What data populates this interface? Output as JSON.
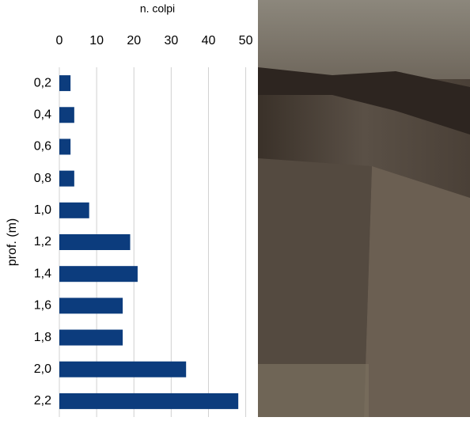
{
  "chart_data": {
    "type": "barh",
    "x_label": "n. colpi",
    "y_label": "prof. (m)",
    "categories": [
      "0,2",
      "0,4",
      "0,6",
      "0,8",
      "1,0",
      "1,2",
      "1,4",
      "1,6",
      "1,8",
      "2,0",
      "2,2"
    ],
    "values": [
      3,
      4,
      3,
      4,
      8,
      19,
      21,
      17,
      17,
      34,
      48
    ],
    "color": "#0c3c7d",
    "xlim": [
      0,
      52
    ],
    "xticks": [
      0,
      10,
      20,
      30,
      40,
      50
    ],
    "grid": true
  }
}
